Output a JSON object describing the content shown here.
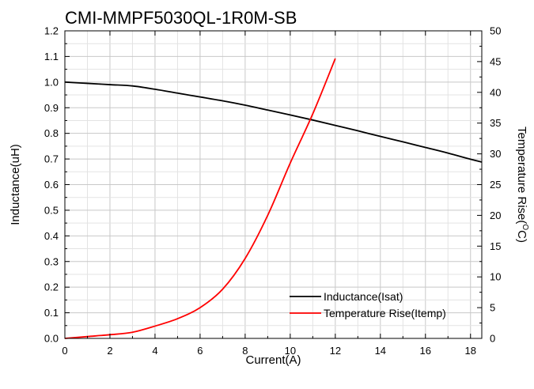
{
  "chart_data": {
    "type": "line",
    "title": "CMI-MMPF5030QL-1R0M-SB",
    "xlabel": "Current(A)",
    "ylabel": "Inductance(uH)",
    "y2label": "Temperature Rise(",
    "y2label_sup": "O",
    "y2label_end": "C)",
    "xlim": [
      0,
      18.5
    ],
    "ylim": [
      0,
      1.2
    ],
    "y2lim": [
      0,
      50
    ],
    "xticks": [
      0,
      2,
      4,
      6,
      8,
      10,
      12,
      14,
      16,
      18
    ],
    "xtick_labels": [
      "0",
      "2",
      "4",
      "6",
      "8",
      "10",
      "12",
      "14",
      "16",
      "18"
    ],
    "yticks": [
      0,
      0.1,
      0.2,
      0.3,
      0.4,
      0.5,
      0.6,
      0.7,
      0.8,
      0.9,
      1.0,
      1.1,
      1.2
    ],
    "ytick_labels": [
      "0.0",
      "0.1",
      "0.2",
      "0.3",
      "0.4",
      "0.5",
      "0.6",
      "0.7",
      "0.8",
      "0.9",
      "1.0",
      "1.1",
      "1.2"
    ],
    "y2ticks": [
      0,
      5,
      10,
      15,
      20,
      25,
      30,
      35,
      40,
      45,
      50
    ],
    "y2tick_labels": [
      "0",
      "5",
      "10",
      "15",
      "20",
      "25",
      "30",
      "35",
      "40",
      "45",
      "50"
    ],
    "grid": true,
    "legend_position": "bottom-right",
    "series": [
      {
        "name": "Inductance(Isat)",
        "axis": "left",
        "color": "#000000",
        "x": [
          0,
          1,
          2,
          3,
          4,
          5,
          6,
          7,
          8,
          9,
          10,
          11,
          12,
          13,
          14,
          15,
          16,
          17,
          18,
          18.5
        ],
        "y": [
          1.0,
          0.995,
          0.99,
          0.985,
          0.972,
          0.957,
          0.942,
          0.927,
          0.91,
          0.891,
          0.872,
          0.852,
          0.831,
          0.81,
          0.788,
          0.767,
          0.745,
          0.723,
          0.699,
          0.688
        ]
      },
      {
        "name": "Temperature Rise(Itemp)",
        "axis": "right",
        "color": "#ff0000",
        "x": [
          0,
          1,
          2,
          3,
          4,
          5,
          6,
          7,
          8,
          9,
          10,
          11,
          12
        ],
        "y": [
          0,
          0.3,
          0.6,
          1.0,
          2.0,
          3.2,
          5.0,
          8.0,
          13.0,
          20.0,
          28.5,
          36.5,
          45.5
        ]
      }
    ]
  }
}
